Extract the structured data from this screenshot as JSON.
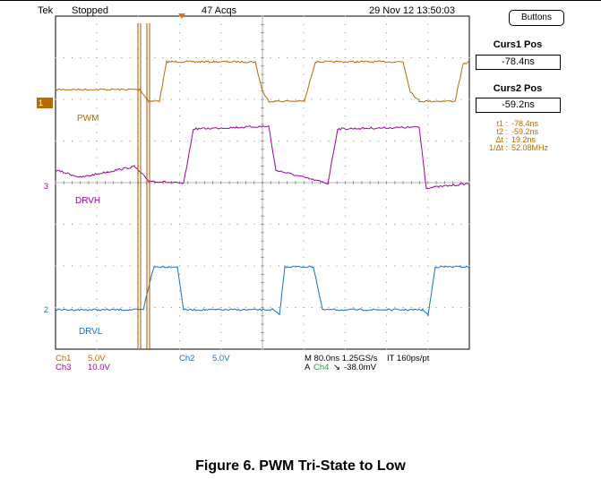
{
  "header": {
    "brand": "Tek",
    "status": "Stopped",
    "acqs": "47 Acqs",
    "datetime": "29 Nov 12 13:50:03",
    "buttons_label": "Buttons"
  },
  "cursors": {
    "curs1_label": "Curs1 Pos",
    "curs1_value": "-78.4ns",
    "curs2_label": "Curs2 Pos",
    "curs2_value": "-59.2ns",
    "readouts": [
      {
        "key": "t1 :",
        "value": "-78.4ns"
      },
      {
        "key": "t2 :",
        "value": "-59.2ns"
      },
      {
        "key": "Δt :",
        "value": "19.2ns"
      },
      {
        "key": "1/Δt :",
        "value": "52.08MHz"
      }
    ]
  },
  "traces": {
    "pwm_label": "PWM",
    "drvh_label": "DRVH",
    "drvl_label": "DRVL",
    "marker_1": "1",
    "marker_3": "3",
    "marker_2": "2"
  },
  "footer": {
    "ch1": "Ch1",
    "ch1_scale": "5.0V",
    "ch3": "Ch3",
    "ch3_scale": "10.0V",
    "ch2": "Ch2",
    "ch2_scale": "5.0V",
    "timebase": "M 80.0ns 1.25GS/s",
    "interp": "IT 160ps/pt",
    "trigger_prefix": "A",
    "trigger_ch": "Ch4",
    "trigger_slope": "↘",
    "trigger_level": "-38.0mV"
  },
  "caption": "Figure 6. PWM Tri-State to Low",
  "colors": {
    "ch1": "#b86b00",
    "ch3": "#a000a0",
    "ch2": "#1a6fc0",
    "grid": "#888888"
  }
}
